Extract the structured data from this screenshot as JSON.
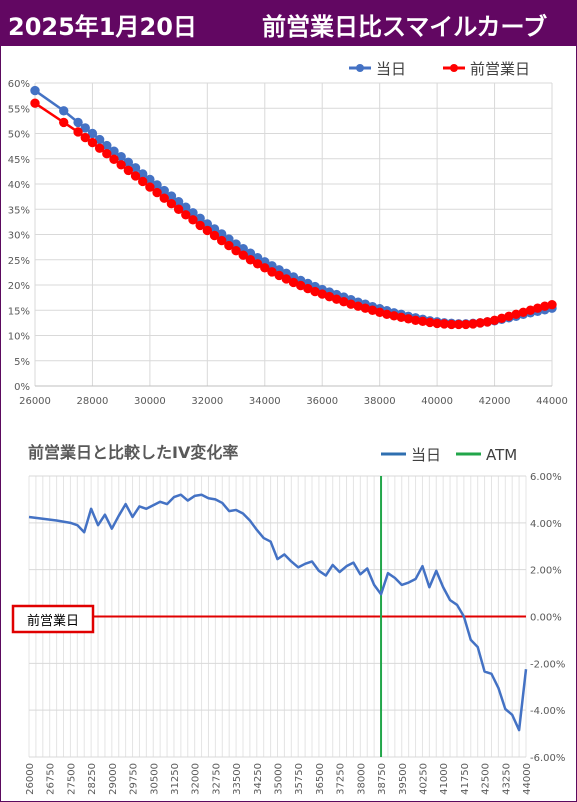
{
  "header": {
    "date": "2025年1月20日",
    "title": "前営業日比スマイルカーブ"
  },
  "colors": {
    "header_bg": "#620762",
    "today": "#4472c4",
    "prev": "#ff0000",
    "iv_line": "#4472c4",
    "atm": "#22a64a",
    "zero_line": "#e00000"
  },
  "chart_data": [
    {
      "type": "line",
      "title": "",
      "legend": [
        "当日",
        "前営業日"
      ],
      "legend_position": "top-right",
      "xlim": [
        26000,
        44000
      ],
      "x_ticks": [
        26000,
        28000,
        30000,
        32000,
        34000,
        36000,
        38000,
        40000,
        42000,
        44000
      ],
      "x_tick_labels": [
        "26000",
        "28000",
        "30000",
        "32000",
        "34000",
        "36000",
        "38000",
        "40000",
        "42000",
        "44000"
      ],
      "ylim": [
        0,
        60
      ],
      "y_ticks": [
        0,
        5,
        10,
        15,
        20,
        25,
        30,
        35,
        40,
        45,
        50,
        55,
        60
      ],
      "y_tick_labels": [
        "0%",
        "5%",
        "10%",
        "15%",
        "20%",
        "25%",
        "30%",
        "35%",
        "40%",
        "45%",
        "50%",
        "55%",
        "60%"
      ],
      "grid": true,
      "series": [
        {
          "name": "当日",
          "points": [
            [
              26000,
              58.5
            ],
            [
              27000,
              54.5
            ],
            [
              27500,
              52.2
            ],
            [
              27750,
              51.1
            ],
            [
              28000,
              50.0
            ],
            [
              28250,
              48.8
            ],
            [
              28500,
              47.6
            ],
            [
              28750,
              46.5
            ],
            [
              29000,
              45.4
            ],
            [
              29250,
              44.3
            ],
            [
              29500,
              43.2
            ],
            [
              29750,
              42.0
            ],
            [
              30000,
              40.9
            ],
            [
              30250,
              39.8
            ],
            [
              30500,
              38.7
            ],
            [
              30750,
              37.6
            ],
            [
              31000,
              36.5
            ],
            [
              31250,
              35.4
            ],
            [
              31500,
              34.3
            ],
            [
              31750,
              33.2
            ],
            [
              32000,
              32.1
            ],
            [
              32250,
              31.1
            ],
            [
              32500,
              30.1
            ],
            [
              32750,
              29.1
            ],
            [
              33000,
              28.1
            ],
            [
              33250,
              27.2
            ],
            [
              33500,
              26.3
            ],
            [
              33750,
              25.4
            ],
            [
              34000,
              24.6
            ],
            [
              34250,
              23.8
            ],
            [
              34500,
              23.0
            ],
            [
              34750,
              22.3
            ],
            [
              35000,
              21.6
            ],
            [
              35250,
              20.9
            ],
            [
              35500,
              20.3
            ],
            [
              35750,
              19.7
            ],
            [
              36000,
              19.1
            ],
            [
              36250,
              18.6
            ],
            [
              36500,
              18.1
            ],
            [
              36750,
              17.6
            ],
            [
              37000,
              17.1
            ],
            [
              37250,
              16.6
            ],
            [
              37500,
              16.2
            ],
            [
              37750,
              15.7
            ],
            [
              38000,
              15.3
            ],
            [
              38250,
              14.9
            ],
            [
              38500,
              14.5
            ],
            [
              38750,
              14.2
            ],
            [
              39000,
              13.8
            ],
            [
              39250,
              13.5
            ],
            [
              39500,
              13.2
            ],
            [
              39750,
              12.9
            ],
            [
              40000,
              12.7
            ],
            [
              40250,
              12.5
            ],
            [
              40500,
              12.4
            ],
            [
              40750,
              12.3
            ],
            [
              41000,
              12.3
            ],
            [
              41250,
              12.4
            ],
            [
              41500,
              12.5
            ],
            [
              41750,
              12.7
            ],
            [
              42000,
              12.9
            ],
            [
              42250,
              13.2
            ],
            [
              42500,
              13.5
            ],
            [
              42750,
              13.8
            ],
            [
              43000,
              14.2
            ],
            [
              43250,
              14.5
            ],
            [
              43500,
              14.8
            ],
            [
              43750,
              15.1
            ],
            [
              44000,
              15.4
            ]
          ]
        },
        {
          "name": "前営業日",
          "points": [
            [
              26000,
              56.0
            ],
            [
              27000,
              52.2
            ],
            [
              27500,
              50.3
            ],
            [
              27750,
              49.2
            ],
            [
              28000,
              48.2
            ],
            [
              28250,
              47.1
            ],
            [
              28500,
              46.0
            ],
            [
              28750,
              44.9
            ],
            [
              29000,
              43.8
            ],
            [
              29250,
              42.7
            ],
            [
              29500,
              41.6
            ],
            [
              29750,
              40.5
            ],
            [
              30000,
              39.4
            ],
            [
              30250,
              38.3
            ],
            [
              30500,
              37.2
            ],
            [
              30750,
              36.1
            ],
            [
              31000,
              35.0
            ],
            [
              31250,
              33.9
            ],
            [
              31500,
              32.9
            ],
            [
              31750,
              31.8
            ],
            [
              32000,
              30.8
            ],
            [
              32250,
              29.8
            ],
            [
              32500,
              28.8
            ],
            [
              32750,
              27.8
            ],
            [
              33000,
              26.8
            ],
            [
              33250,
              25.9
            ],
            [
              33500,
              25.0
            ],
            [
              33750,
              24.2
            ],
            [
              34000,
              23.4
            ],
            [
              34250,
              22.6
            ],
            [
              34500,
              21.9
            ],
            [
              34750,
              21.2
            ],
            [
              35000,
              20.5
            ],
            [
              35250,
              19.9
            ],
            [
              35500,
              19.3
            ],
            [
              35750,
              18.7
            ],
            [
              36000,
              18.2
            ],
            [
              36250,
              17.7
            ],
            [
              36500,
              17.2
            ],
            [
              36750,
              16.7
            ],
            [
              37000,
              16.2
            ],
            [
              37250,
              15.8
            ],
            [
              37500,
              15.4
            ],
            [
              37750,
              15.0
            ],
            [
              38000,
              14.6
            ],
            [
              38250,
              14.2
            ],
            [
              38500,
              13.9
            ],
            [
              38750,
              13.6
            ],
            [
              39000,
              13.3
            ],
            [
              39250,
              13.0
            ],
            [
              39500,
              12.8
            ],
            [
              39750,
              12.6
            ],
            [
              40000,
              12.4
            ],
            [
              40250,
              12.3
            ],
            [
              40500,
              12.2
            ],
            [
              40750,
              12.2
            ],
            [
              41000,
              12.2
            ],
            [
              41250,
              12.3
            ],
            [
              41500,
              12.5
            ],
            [
              41750,
              12.7
            ],
            [
              42000,
              13.0
            ],
            [
              42250,
              13.4
            ],
            [
              42500,
              13.8
            ],
            [
              42750,
              14.2
            ],
            [
              43000,
              14.6
            ],
            [
              43250,
              15.0
            ],
            [
              43500,
              15.4
            ],
            [
              43750,
              15.8
            ],
            [
              44000,
              16.1
            ]
          ]
        }
      ]
    },
    {
      "type": "line",
      "title": "前営業日と比較したIV変化率",
      "legend": [
        "当日",
        "ATM"
      ],
      "legend_position": "top-right",
      "xlim": [
        26000,
        44000
      ],
      "x_tick_labels": [
        "26000",
        "26750",
        "27500",
        "28250",
        "29000",
        "29750",
        "30500",
        "31250",
        "32000",
        "32750",
        "33500",
        "34250",
        "35000",
        "35750",
        "36500",
        "37250",
        "38000",
        "38750",
        "39500",
        "40250",
        "41000",
        "41750",
        "42500",
        "43250",
        "44000"
      ],
      "ylim": [
        -6,
        6
      ],
      "y_ticks": [
        -6,
        -4,
        -2,
        0,
        2,
        4,
        6
      ],
      "y_tick_labels": [
        "-6.00%",
        "-4.00%",
        "-2.00%",
        "0.00%",
        "2.00%",
        "4.00%",
        "6.00%"
      ],
      "y_axis_side": "right",
      "grid": true,
      "atm": 38750,
      "baseline_label": "前営業日",
      "series": [
        {
          "name": "当日",
          "points": [
            [
              26000,
              4.25
            ],
            [
              27000,
              4.1
            ],
            [
              27500,
              4.0
            ],
            [
              27750,
              3.9
            ],
            [
              28000,
              3.6
            ],
            [
              28250,
              4.6
            ],
            [
              28500,
              3.9
            ],
            [
              28750,
              4.35
            ],
            [
              29000,
              3.75
            ],
            [
              29250,
              4.3
            ],
            [
              29500,
              4.8
            ],
            [
              29750,
              4.25
            ],
            [
              30000,
              4.7
            ],
            [
              30250,
              4.6
            ],
            [
              30500,
              4.75
            ],
            [
              30750,
              4.9
            ],
            [
              31000,
              4.8
            ],
            [
              31250,
              5.1
            ],
            [
              31500,
              5.2
            ],
            [
              31750,
              4.95
            ],
            [
              32000,
              5.15
            ],
            [
              32250,
              5.2
            ],
            [
              32500,
              5.05
            ],
            [
              32750,
              5.0
            ],
            [
              33000,
              4.85
            ],
            [
              33250,
              4.5
            ],
            [
              33500,
              4.55
            ],
            [
              33750,
              4.4
            ],
            [
              34000,
              4.1
            ],
            [
              34250,
              3.7
            ],
            [
              34500,
              3.35
            ],
            [
              34750,
              3.2
            ],
            [
              35000,
              2.45
            ],
            [
              35250,
              2.65
            ],
            [
              35500,
              2.35
            ],
            [
              35750,
              2.1
            ],
            [
              36000,
              2.25
            ],
            [
              36250,
              2.35
            ],
            [
              36500,
              1.95
            ],
            [
              36750,
              1.75
            ],
            [
              37000,
              2.2
            ],
            [
              37250,
              1.9
            ],
            [
              37500,
              2.15
            ],
            [
              37750,
              2.3
            ],
            [
              38000,
              1.8
            ],
            [
              38250,
              2.05
            ],
            [
              38500,
              1.35
            ],
            [
              38750,
              0.95
            ],
            [
              39000,
              1.85
            ],
            [
              39250,
              1.65
            ],
            [
              39500,
              1.35
            ],
            [
              39750,
              1.45
            ],
            [
              40000,
              1.6
            ],
            [
              40250,
              2.15
            ],
            [
              40500,
              1.25
            ],
            [
              40750,
              1.95
            ],
            [
              41000,
              1.25
            ],
            [
              41250,
              0.7
            ],
            [
              41500,
              0.5
            ],
            [
              41750,
              0.0
            ],
            [
              42000,
              -1.0
            ],
            [
              42250,
              -1.3
            ],
            [
              42500,
              -2.35
            ],
            [
              42750,
              -2.45
            ],
            [
              43000,
              -3.05
            ],
            [
              43250,
              -3.95
            ],
            [
              43500,
              -4.2
            ],
            [
              43750,
              -4.85
            ],
            [
              44000,
              -2.25
            ]
          ]
        }
      ]
    }
  ]
}
